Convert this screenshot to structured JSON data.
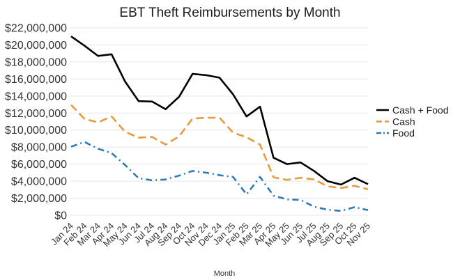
{
  "chart_data": {
    "type": "line",
    "title": "EBT Theft Reimbursements by Month",
    "xlabel": "Month",
    "ylabel": "",
    "categories": [
      "Jan 24",
      "Feb 24",
      "Mar 24",
      "Apr 24",
      "May 24",
      "Jun 24",
      "Jul 24",
      "Aug 24",
      "Sep 24",
      "Oct 24",
      "Nov 24",
      "Dec 24",
      "Jan 25",
      "Feb 25",
      "Mar 25",
      "Apr 25",
      "May 25",
      "Jun 25",
      "Jul 25",
      "Aug 25",
      "Sep 25",
      "Oct 25",
      "Nov 25"
    ],
    "ylim": [
      0,
      22000000
    ],
    "yticks": [
      0,
      2000000,
      4000000,
      6000000,
      8000000,
      10000000,
      12000000,
      14000000,
      16000000,
      18000000,
      20000000,
      22000000
    ],
    "ytick_labels": [
      "$0",
      "$2,000,000",
      "$4,000,000",
      "$6,000,000",
      "$8,000,000",
      "$10,000,000",
      "$12,000,000",
      "$14,000,000",
      "$16,000,000",
      "$18,000,000",
      "$20,000,000",
      "$22,000,000"
    ],
    "grid": true,
    "legend_position": "right",
    "series": [
      {
        "name": "Cash + Food",
        "color": "#000000",
        "dash": "solid",
        "values": [
          21000000,
          19900000,
          18700000,
          18900000,
          15700000,
          13400000,
          13350000,
          12450000,
          13900000,
          16600000,
          16450000,
          16150000,
          14200000,
          11600000,
          12750000,
          6750000,
          6000000,
          6200000,
          5200000,
          4000000,
          3600000,
          4400000,
          3650000
        ]
      },
      {
        "name": "Cash",
        "color": "#e69a3c",
        "dash": "dashed",
        "values": [
          12950000,
          11300000,
          10900000,
          11600000,
          9800000,
          9100000,
          9200000,
          8300000,
          9250000,
          11350000,
          11450000,
          11450000,
          9700000,
          9150000,
          8300000,
          4450000,
          4150000,
          4400000,
          4200000,
          3400000,
          3200000,
          3450000,
          3050000
        ]
      },
      {
        "name": "Food",
        "color": "#2b7bb9",
        "dash": "dashdot",
        "values": [
          8050000,
          8600000,
          7800000,
          7300000,
          5900000,
          4350000,
          4100000,
          4200000,
          4650000,
          5200000,
          5000000,
          4700000,
          4500000,
          2450000,
          4500000,
          2300000,
          1850000,
          1800000,
          1000000,
          650000,
          500000,
          950000,
          600000
        ]
      }
    ]
  }
}
